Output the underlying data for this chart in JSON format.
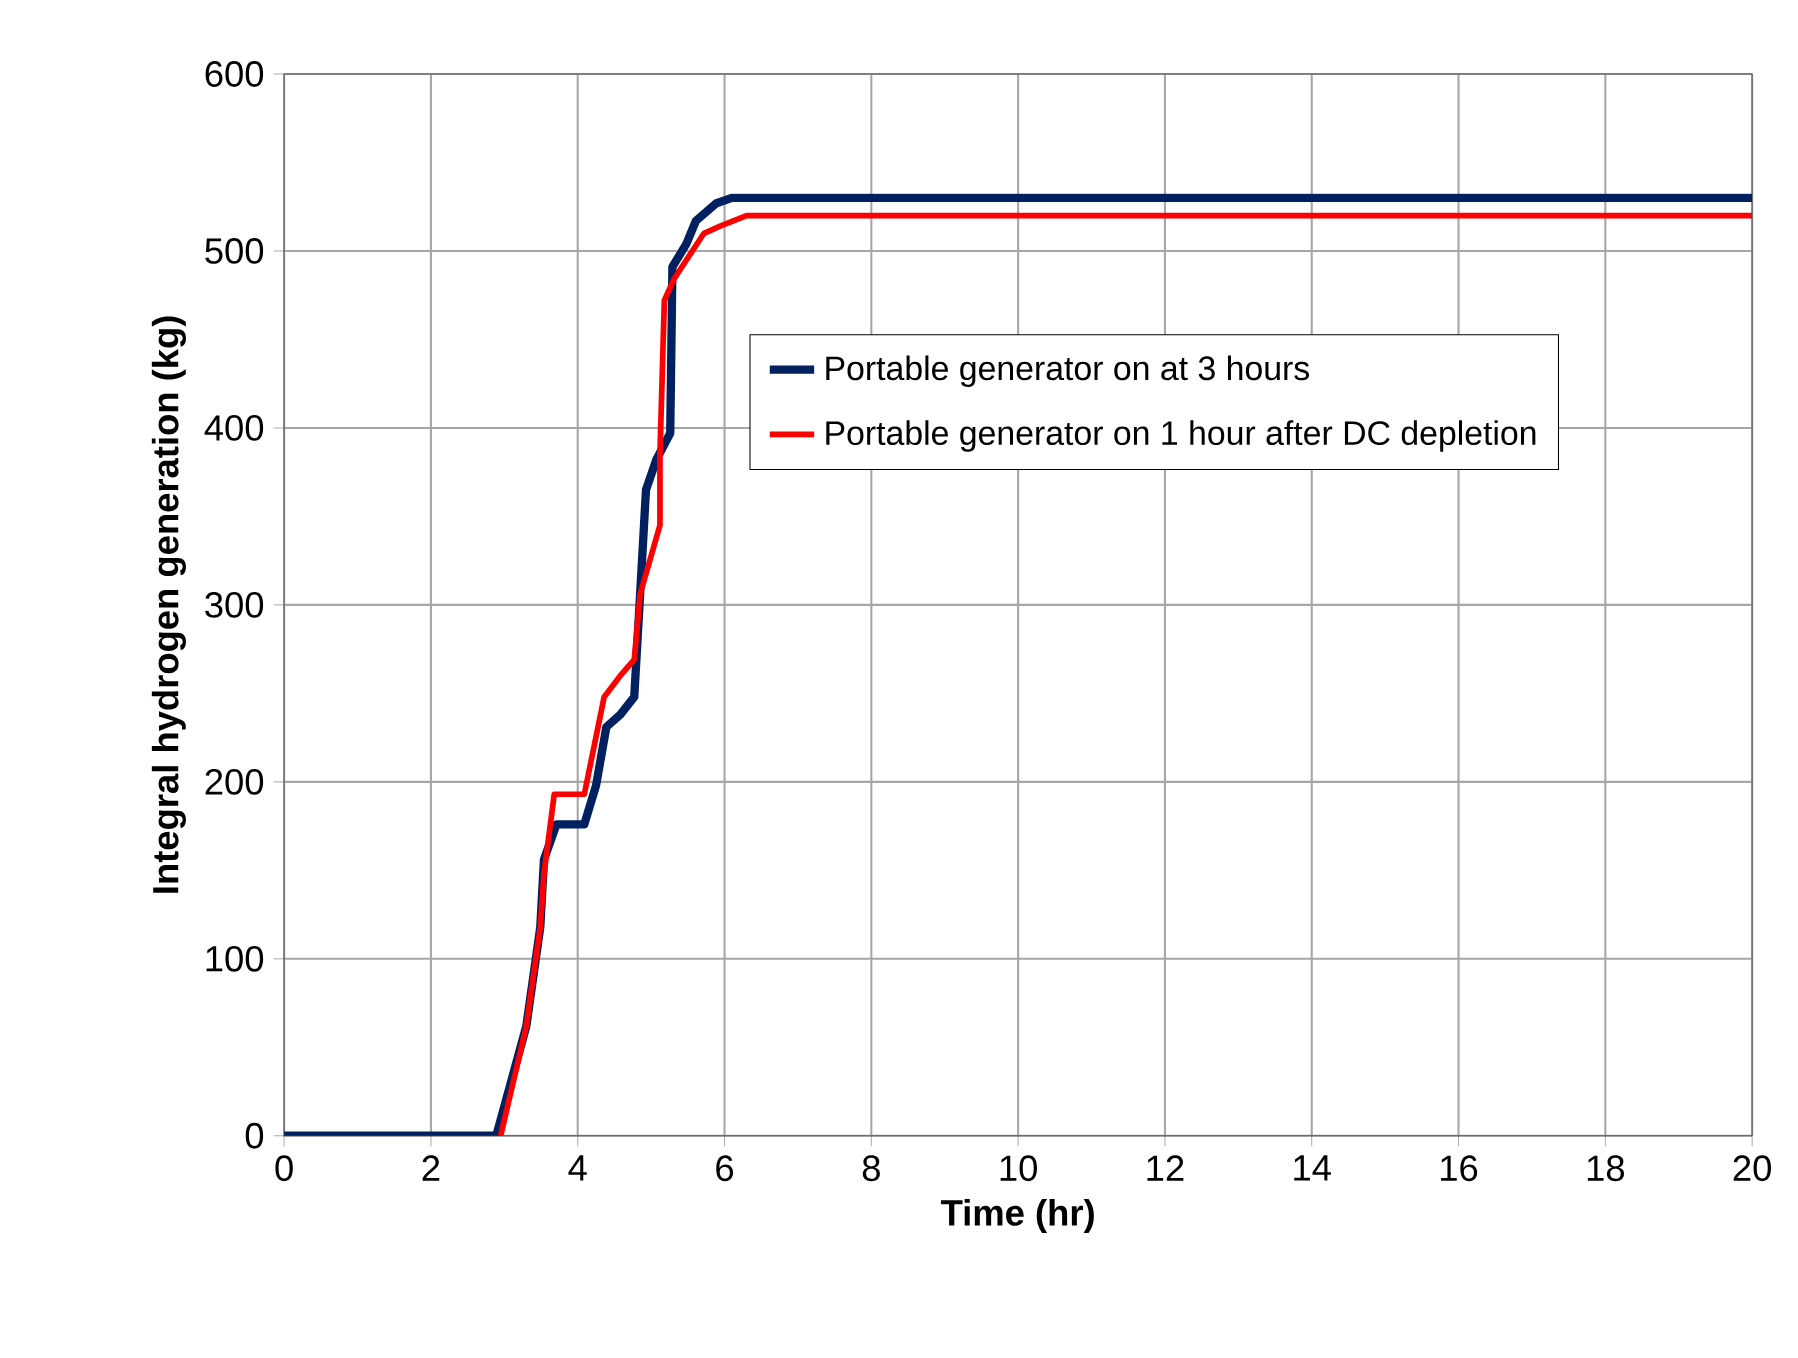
{
  "chart_data": {
    "type": "line",
    "xlabel": "Time (hr)",
    "ylabel": "Integral hydrogen generation (kg)",
    "xlim": [
      0,
      20
    ],
    "ylim": [
      0,
      600
    ],
    "xticks": [
      0,
      2,
      4,
      6,
      8,
      10,
      12,
      14,
      16,
      18,
      20
    ],
    "yticks": [
      0,
      100,
      200,
      300,
      400,
      500,
      600
    ],
    "grid": true,
    "legend": "right",
    "marker": "none",
    "line_style": "solid",
    "series": [
      {
        "name": "Portable generator on at 3 hours",
        "color": "#002060",
        "x": [
          0,
          2.89,
          3.3,
          3.49,
          3.54,
          3.71,
          4.09,
          4.25,
          4.39,
          4.58,
          4.77,
          4.85,
          4.93,
          5.07,
          5.26,
          5.29,
          5.48,
          5.61,
          5.89,
          6.1,
          20
        ],
        "values": [
          0,
          0,
          62,
          118,
          156,
          176,
          176,
          198,
          231,
          238,
          248,
          306,
          365,
          382,
          397,
          491,
          504,
          517,
          527,
          530,
          530
        ]
      },
      {
        "name": "Portable generator on 1 hour after DC depletion",
        "color": "#ff0000",
        "x": [
          2.95,
          3.3,
          3.49,
          3.54,
          3.68,
          4.09,
          4.36,
          4.58,
          4.77,
          4.85,
          5.12,
          5.12,
          5.18,
          5.31,
          5.53,
          5.72,
          5.94,
          6.3,
          20
        ],
        "values": [
          0,
          62,
          118,
          148,
          193,
          193,
          248,
          260,
          269,
          306,
          345,
          385,
          472,
          484,
          498,
          510,
          514,
          520,
          520
        ]
      }
    ]
  }
}
